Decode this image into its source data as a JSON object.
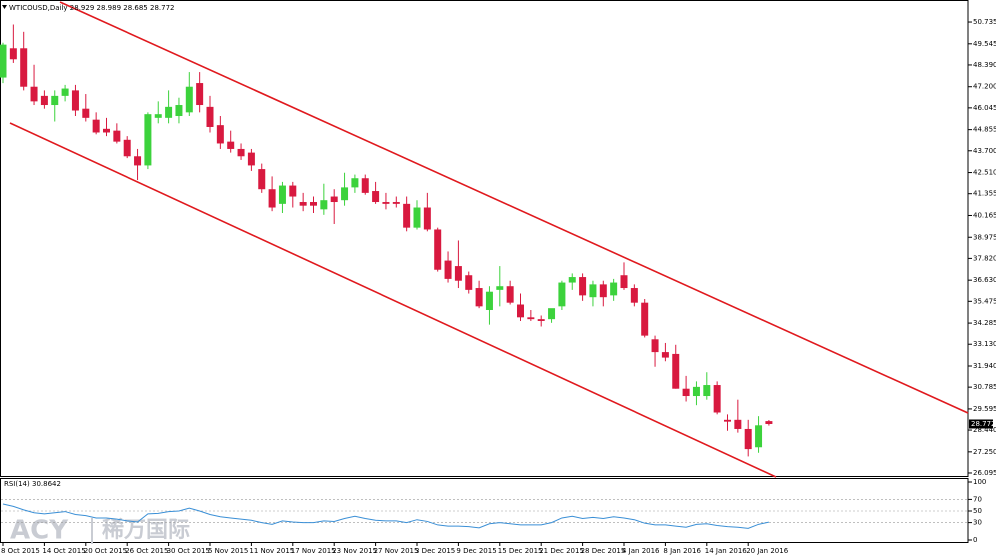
{
  "chart_data": [
    {
      "type": "candlestick",
      "title": "WTICOUSD,Daily",
      "up_color": "#3cd23c",
      "down_color": "#d8193f",
      "categories": [
        "8 Oct 2015",
        null,
        null,
        null,
        "14 Oct 2015",
        null,
        null,
        null,
        "20 Oct 2015",
        null,
        null,
        null,
        "26 Oct 2015",
        null,
        null,
        null,
        "30 Oct 2015",
        null,
        null,
        null,
        "5 Nov 2015",
        null,
        null,
        null,
        "11 Nov 2015",
        null,
        null,
        null,
        "17 Nov 2015",
        null,
        null,
        null,
        "23 Nov 2015",
        null,
        null,
        null,
        "27 Nov 2015",
        null,
        null,
        null,
        "3 Dec 2015",
        null,
        null,
        null,
        "9 Dec 2015",
        null,
        null,
        null,
        "15 Dec 2015",
        null,
        null,
        null,
        "21 Dec 2015",
        null,
        null,
        null,
        "28 Dec 2015",
        null,
        null,
        null,
        "4 Jan 2016",
        null,
        null,
        null,
        "8 Jan 2016",
        null,
        null,
        null,
        "14 Jan 2016",
        null,
        null,
        null,
        "20 Jan 2016",
        null,
        null
      ],
      "open": [
        47.7,
        49.3,
        49.3,
        47.2,
        46.7,
        46.2,
        46.7,
        47.0,
        46.0,
        45.4,
        44.9,
        44.8,
        44.3,
        43.4,
        42.9,
        45.5,
        45.5,
        45.6,
        45.8,
        47.4,
        46.1,
        45.1,
        44.2,
        43.8,
        43.6,
        42.7,
        41.6,
        40.8,
        41.8,
        40.9,
        40.9,
        40.5,
        41.2,
        41.0,
        41.7,
        42.2,
        41.5,
        40.9,
        40.9,
        40.8,
        39.5,
        40.6,
        39.4,
        37.7,
        37.4,
        36.9,
        36.2,
        35.0,
        36.1,
        36.3,
        35.3,
        34.6,
        34.5,
        34.5,
        35.2,
        36.5,
        36.8,
        35.7,
        36.4,
        35.8,
        36.9,
        36.2,
        35.4,
        33.4,
        32.7,
        32.6,
        30.7,
        30.3,
        30.3,
        30.9,
        29.0,
        29.0,
        28.5,
        27.5,
        28.929
      ],
      "high": [
        49.6,
        50.6,
        50.2,
        48.4,
        47.0,
        47.0,
        47.3,
        47.3,
        46.8,
        45.8,
        45.5,
        45.2,
        44.5,
        43.8,
        45.8,
        46.4,
        47.0,
        46.6,
        48.0,
        48.0,
        46.7,
        45.6,
        44.8,
        44.1,
        43.8,
        43.0,
        42.3,
        42.0,
        42.0,
        41.4,
        41.2,
        41.9,
        41.6,
        42.5,
        42.4,
        42.4,
        42.0,
        41.4,
        41.2,
        41.2,
        41.0,
        41.4,
        39.5,
        38.2,
        38.8,
        37.1,
        36.6,
        36.3,
        37.4,
        36.6,
        35.9,
        35.0,
        34.7,
        35.0,
        36.6,
        37.0,
        37.0,
        36.6,
        36.6,
        36.7,
        37.6,
        36.4,
        35.6,
        33.6,
        33.2,
        33.1,
        31.4,
        31.1,
        31.6,
        31.1,
        29.3,
        30.1,
        29.0,
        29.2,
        28.989
      ],
      "low": [
        47.4,
        48.5,
        47.0,
        46.2,
        46.0,
        45.3,
        46.4,
        45.6,
        45.3,
        44.6,
        44.5,
        44.1,
        43.3,
        42.1,
        42.7,
        45.2,
        45.2,
        45.2,
        45.6,
        45.8,
        44.7,
        43.8,
        43.6,
        43.2,
        42.6,
        41.4,
        40.4,
        40.3,
        40.6,
        40.4,
        40.3,
        40.2,
        39.7,
        40.7,
        41.4,
        41.3,
        40.8,
        40.5,
        40.6,
        39.3,
        39.4,
        39.3,
        37.1,
        36.5,
        36.2,
        35.9,
        35.1,
        34.2,
        35.2,
        35.3,
        34.4,
        34.4,
        34.1,
        34.3,
        35.0,
        36.1,
        35.5,
        35.2,
        35.2,
        35.5,
        36.1,
        35.2,
        33.5,
        31.9,
        32.2,
        30.7,
        30.0,
        29.8,
        30.1,
        29.3,
        28.4,
        28.3,
        27.0,
        27.2,
        28.685
      ],
      "close": [
        49.5,
        48.7,
        47.2,
        46.4,
        46.2,
        46.7,
        47.1,
        45.9,
        45.5,
        44.7,
        44.7,
        44.2,
        43.4,
        42.9,
        45.7,
        45.7,
        46.1,
        46.2,
        47.2,
        46.2,
        45.0,
        44.1,
        43.8,
        43.4,
        42.9,
        41.6,
        40.6,
        41.8,
        41.2,
        40.7,
        40.7,
        41.0,
        40.9,
        41.7,
        42.2,
        41.4,
        40.9,
        40.8,
        40.8,
        39.5,
        40.6,
        39.4,
        37.2,
        36.7,
        36.6,
        36.1,
        35.2,
        36.0,
        36.3,
        35.4,
        34.6,
        34.5,
        34.4,
        35.1,
        36.5,
        36.8,
        35.8,
        36.4,
        35.7,
        36.5,
        36.2,
        35.4,
        33.6,
        32.7,
        32.4,
        30.7,
        30.3,
        30.8,
        30.9,
        29.4,
        28.9,
        28.5,
        27.4,
        28.7,
        28.772
      ],
      "ylim": [
        25.93,
        51.72
      ],
      "yticks": [
        50.735,
        49.545,
        {
          "value": 48.39,
          "label": "48.390"
        },
        {
          "value": 47.2,
          "label": "47.200"
        },
        46.045,
        44.855,
        {
          "value": 43.7,
          "label": "43.700"
        },
        {
          "value": 42.51,
          "label": "42.510"
        },
        41.355,
        40.165,
        38.975,
        {
          "value": 37.82,
          "label": "37.820"
        },
        {
          "value": 36.63,
          "label": "36.630"
        },
        35.475,
        34.285,
        {
          "value": 33.13,
          "label": "33.130"
        },
        {
          "value": 31.94,
          "label": "31.940"
        },
        30.785,
        29.595,
        {
          "value": 28.44,
          "label": "28.440"
        },
        {
          "value": 27.25,
          "label": "27.250"
        },
        26.095
      ]
    },
    {
      "type": "line",
      "title": "RSI(14)",
      "color": "#3a8fd6",
      "values": [
        62,
        58,
        52,
        47,
        45,
        47,
        49,
        44,
        42,
        38,
        38,
        36,
        33,
        31,
        45,
        46,
        49,
        50,
        55,
        50,
        44,
        40,
        38,
        36,
        34,
        30,
        27,
        33,
        31,
        30,
        30,
        33,
        32,
        37,
        41,
        37,
        34,
        33,
        33,
        30,
        35,
        32,
        26,
        24,
        24,
        23,
        21,
        28,
        30,
        28,
        26,
        26,
        26,
        30,
        38,
        41,
        37,
        39,
        37,
        40,
        38,
        35,
        29,
        26,
        26,
        24,
        22,
        27,
        28,
        25,
        23,
        22,
        20,
        27,
        30.8642
      ],
      "ylim": [
        0,
        100
      ],
      "yticks": [
        100,
        70,
        50,
        30,
        0
      ]
    }
  ],
  "watermark": {
    "brand": "ACY",
    "name": "稀万国际"
  }
}
